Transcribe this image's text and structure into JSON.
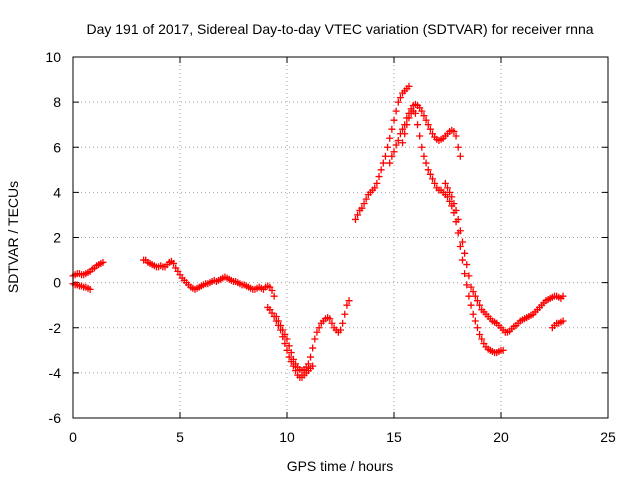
{
  "chart_data": {
    "type": "scatter",
    "title": "Day 191 of 2017, Sidereal Day-to-day VTEC variation (SDTVAR) for receiver rnna",
    "xlabel": "GPS time / hours",
    "ylabel": "SDTVAR / TECUs",
    "xlim": [
      0,
      25
    ],
    "ylim": [
      -6,
      10
    ],
    "xticks": [
      0,
      5,
      10,
      15,
      20,
      25
    ],
    "yticks": [
      -6,
      -4,
      -2,
      0,
      2,
      4,
      6,
      8,
      10
    ],
    "xtick_labels": [
      "0",
      "5",
      "10",
      "15",
      "20",
      "25"
    ],
    "ytick_labels": [
      "-6",
      "-4",
      "-2",
      "0",
      "2",
      "4",
      "6",
      "8",
      "10"
    ],
    "grid": true,
    "marker": "plus",
    "color": "#ff0000",
    "segments": [
      {
        "x": [
          0.0,
          0.1,
          0.2,
          0.3,
          0.4,
          0.5,
          0.6,
          0.7,
          0.8
        ],
        "y": [
          -0.05,
          -0.1,
          -0.1,
          -0.15,
          -0.15,
          -0.2,
          -0.2,
          -0.25,
          -0.3
        ]
      },
      {
        "x": [
          0.0,
          0.1,
          0.2,
          0.3,
          0.4,
          0.5,
          0.6,
          0.7,
          0.8,
          0.9,
          1.0,
          1.1,
          1.2,
          1.3,
          1.4
        ],
        "y": [
          0.3,
          0.35,
          0.4,
          0.4,
          0.35,
          0.35,
          0.4,
          0.45,
          0.5,
          0.6,
          0.65,
          0.75,
          0.8,
          0.85,
          0.9
        ]
      },
      {
        "x": [
          3.3,
          3.4,
          3.5,
          3.6,
          3.7,
          3.8,
          3.9,
          4.0,
          4.1,
          4.2,
          4.3,
          4.4,
          4.5,
          4.6,
          4.7,
          4.8,
          4.9,
          5.0,
          5.1,
          5.2,
          5.3,
          5.4,
          5.5,
          5.6,
          5.7,
          5.8,
          5.9,
          6.0,
          6.1,
          6.2,
          6.3,
          6.4,
          6.5,
          6.6,
          6.7,
          6.8,
          6.9,
          7.0,
          7.1,
          7.2,
          7.3,
          7.4,
          7.5,
          7.6,
          7.7,
          7.8,
          7.9,
          8.0,
          8.1,
          8.2,
          8.3,
          8.4,
          8.5,
          8.6,
          8.7,
          8.8,
          8.9,
          9.0,
          9.1,
          9.2,
          9.3,
          9.4
        ],
        "y": [
          1.0,
          1.0,
          0.9,
          0.85,
          0.8,
          0.75,
          0.7,
          0.7,
          0.75,
          0.7,
          0.7,
          0.8,
          0.9,
          0.95,
          0.85,
          0.65,
          0.5,
          0.35,
          0.2,
          0.1,
          0.0,
          -0.1,
          -0.2,
          -0.25,
          -0.3,
          -0.25,
          -0.2,
          -0.15,
          -0.1,
          -0.05,
          -0.05,
          0.0,
          0.05,
          0.1,
          0.05,
          0.1,
          0.15,
          0.2,
          0.25,
          0.2,
          0.15,
          0.1,
          0.05,
          0.05,
          0.0,
          -0.05,
          -0.1,
          -0.1,
          -0.15,
          -0.2,
          -0.25,
          -0.3,
          -0.3,
          -0.25,
          -0.2,
          -0.25,
          -0.3,
          -0.2,
          -0.15,
          -0.2,
          -0.35,
          -0.6
        ]
      },
      {
        "x": [
          9.1,
          9.2,
          9.3,
          9.4,
          9.5,
          9.6,
          9.7,
          9.8,
          9.9,
          10.0,
          10.1,
          10.2,
          10.3,
          10.4,
          10.5,
          10.6,
          10.7,
          10.8,
          10.9,
          11.0,
          11.1,
          11.2
        ],
        "y": [
          -1.1,
          -1.2,
          -1.35,
          -1.5,
          -1.7,
          -1.9,
          -2.1,
          -2.4,
          -2.7,
          -3.0,
          -3.3,
          -3.5,
          -3.7,
          -3.9,
          -4.1,
          -4.2,
          -4.2,
          -4.1,
          -4.0,
          -3.9,
          -3.8,
          -3.7
        ]
      },
      {
        "x": [
          9.5,
          9.6,
          9.7,
          9.8,
          9.9,
          10.0,
          10.1,
          10.2,
          10.3,
          10.4,
          10.5,
          10.6,
          10.7,
          10.8,
          10.9,
          11.0,
          11.1,
          11.2,
          11.3,
          11.4,
          11.5,
          11.6,
          11.7,
          11.8,
          11.9,
          12.0,
          12.1,
          12.2,
          12.3,
          12.4,
          12.5,
          12.6,
          12.7,
          12.8,
          12.9
        ],
        "y": [
          -1.5,
          -1.7,
          -1.9,
          -2.1,
          -2.3,
          -2.5,
          -2.8,
          -3.1,
          -3.4,
          -3.6,
          -3.75,
          -3.85,
          -3.9,
          -3.85,
          -3.75,
          -3.6,
          -3.3,
          -2.9,
          -2.5,
          -2.2,
          -2.0,
          -1.8,
          -1.7,
          -1.6,
          -1.55,
          -1.6,
          -1.8,
          -2.0,
          -2.1,
          -2.2,
          -2.1,
          -1.8,
          -1.4,
          -1.0,
          -0.8
        ]
      },
      {
        "x": [
          13.2,
          13.3,
          13.4,
          13.5,
          13.6,
          13.7,
          13.8,
          13.9,
          14.0,
          14.1,
          14.2,
          14.3,
          14.4,
          14.5,
          14.6,
          14.7,
          14.8,
          14.9,
          15.0,
          15.1,
          15.2,
          15.3,
          15.4,
          15.5,
          15.6,
          15.7
        ],
        "y": [
          2.8,
          3.0,
          3.2,
          3.3,
          3.5,
          3.7,
          3.9,
          4.0,
          4.1,
          4.2,
          4.4,
          4.7,
          5.0,
          5.3,
          5.6,
          6.0,
          6.4,
          6.8,
          7.2,
          7.6,
          8.0,
          8.2,
          8.4,
          8.5,
          8.6,
          8.7
        ]
      },
      {
        "x": [
          14.8,
          14.9,
          15.0,
          15.1,
          15.2,
          15.3,
          15.4,
          15.5,
          15.6,
          15.7,
          15.8,
          15.9,
          16.0,
          16.1,
          16.2,
          16.3,
          16.4,
          16.5,
          16.6,
          16.7,
          16.8,
          16.9,
          17.0,
          17.1,
          17.2,
          17.3,
          17.4,
          17.5,
          17.6,
          17.7,
          17.8,
          17.9,
          18.0,
          18.1
        ],
        "y": [
          5.3,
          5.6,
          5.8,
          6.1,
          6.3,
          6.6,
          6.8,
          7.0,
          7.3,
          7.5,
          7.7,
          7.85,
          7.9,
          7.85,
          7.75,
          7.6,
          7.4,
          7.2,
          7.0,
          6.8,
          6.6,
          6.45,
          6.35,
          6.3,
          6.35,
          6.4,
          6.5,
          6.6,
          6.7,
          6.75,
          6.7,
          6.5,
          6.0,
          5.6
        ]
      },
      {
        "x": [
          15.4,
          15.5,
          15.6,
          15.7,
          15.8,
          15.9,
          16.0,
          16.1,
          16.2,
          16.3,
          16.4,
          16.5,
          16.6,
          16.7,
          16.8,
          16.9,
          17.0,
          17.1,
          17.2,
          17.3,
          17.4,
          17.5,
          17.6,
          17.7,
          17.8,
          17.9,
          18.0,
          18.1,
          18.2,
          18.3,
          18.4,
          18.5,
          18.6,
          18.7,
          18.8,
          18.9,
          19.0,
          19.1,
          19.2,
          19.3,
          19.4,
          19.5,
          19.6,
          19.7,
          19.8,
          19.9,
          20.0,
          20.1
        ],
        "y": [
          6.2,
          6.6,
          7.0,
          7.3,
          7.5,
          7.6,
          7.5,
          7.0,
          6.5,
          6.0,
          5.6,
          5.3,
          5.0,
          4.8,
          4.6,
          4.4,
          4.2,
          4.1,
          4.1,
          4.0,
          3.9,
          3.8,
          3.6,
          3.4,
          3.1,
          2.7,
          2.2,
          1.6,
          1.0,
          0.4,
          -0.1,
          -0.6,
          -1.0,
          -1.4,
          -1.7,
          -2.0,
          -2.3,
          -2.5,
          -2.7,
          -2.85,
          -2.95,
          -3.0,
          -3.05,
          -3.1,
          -3.1,
          -3.05,
          -3.0,
          -3.0
        ]
      },
      {
        "x": [
          17.4,
          17.5,
          17.6,
          17.7,
          17.8,
          17.9,
          18.0,
          18.1,
          18.2,
          18.3,
          18.4,
          18.5,
          18.6,
          18.7,
          18.8,
          18.9,
          19.0,
          19.1,
          19.2,
          19.3,
          19.4,
          19.5,
          19.6,
          19.7,
          19.8,
          19.9,
          20.0,
          20.1,
          20.2,
          20.3,
          20.4,
          20.5,
          20.6,
          20.7,
          20.8,
          20.9,
          21.0,
          21.1,
          21.2,
          21.3,
          21.4,
          21.5,
          21.6,
          21.7,
          21.8,
          21.9,
          22.0,
          22.1,
          22.2,
          22.3,
          22.4,
          22.5,
          22.6,
          22.7,
          22.8,
          22.9
        ],
        "y": [
          4.4,
          4.2,
          4.0,
          3.8,
          3.5,
          3.2,
          2.8,
          2.3,
          1.8,
          1.3,
          0.8,
          0.3,
          -0.2,
          -0.4,
          -0.6,
          -0.8,
          -1.0,
          -1.2,
          -1.3,
          -1.4,
          -1.5,
          -1.6,
          -1.7,
          -1.75,
          -1.8,
          -1.9,
          -2.0,
          -2.1,
          -2.2,
          -2.2,
          -2.15,
          -2.05,
          -1.95,
          -1.9,
          -1.8,
          -1.7,
          -1.65,
          -1.6,
          -1.55,
          -1.5,
          -1.45,
          -1.4,
          -1.3,
          -1.2,
          -1.1,
          -1.0,
          -0.9,
          -0.8,
          -0.75,
          -0.7,
          -0.65,
          -0.6,
          -0.6,
          -0.65,
          -0.7,
          -0.6
        ]
      },
      {
        "x": [
          22.4,
          22.5,
          22.6,
          22.7,
          22.8,
          22.9
        ],
        "y": [
          -2.0,
          -1.9,
          -1.8,
          -1.8,
          -1.75,
          -1.7
        ]
      }
    ]
  }
}
